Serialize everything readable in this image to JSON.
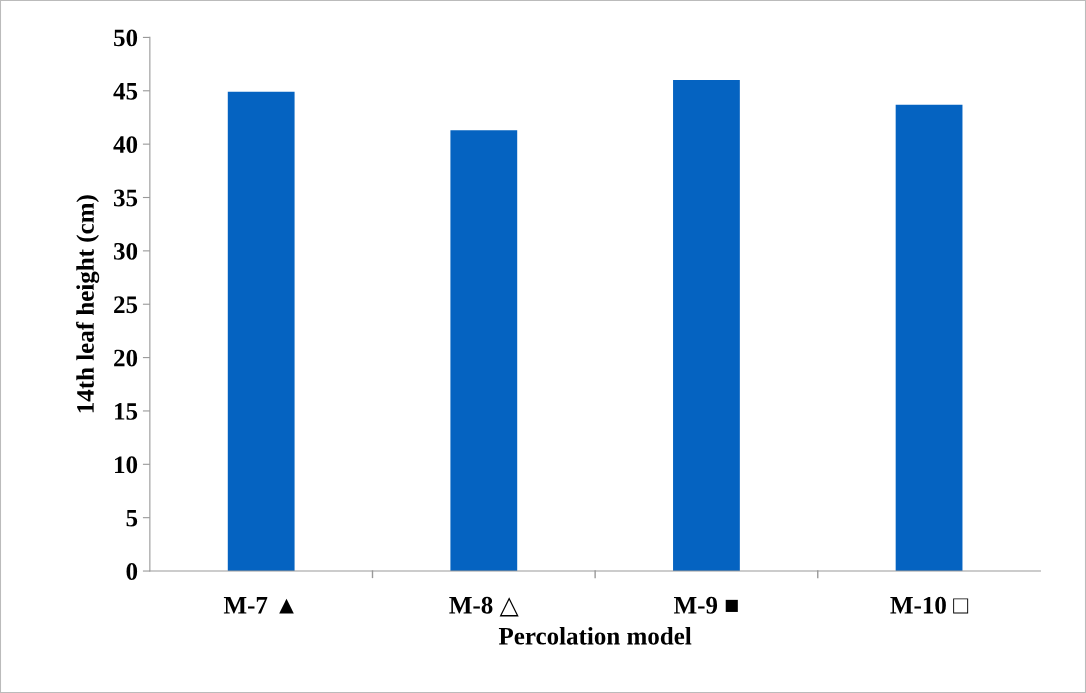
{
  "chart_data": {
    "type": "bar",
    "xlabel": "Percolation model",
    "ylabel": "14th leaf height (cm)",
    "categories": [
      "M-7 ▲",
      "M-8 △",
      "M-9 ■",
      "M-10 □"
    ],
    "values": [
      44.9,
      41.3,
      46.0,
      43.7
    ],
    "color": "#0563c1",
    "ylim": [
      0,
      50
    ],
    "yticks": [
      0,
      5,
      10,
      15,
      20,
      25,
      30,
      35,
      40,
      45,
      50
    ],
    "grid": false,
    "legend": false
  }
}
